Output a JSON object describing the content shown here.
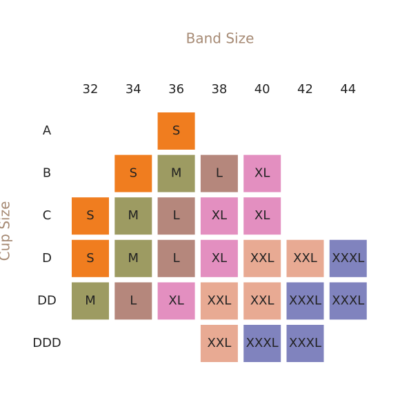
{
  "header": {
    "title": "Band Size",
    "side_title": "Cup Size"
  },
  "columns": [
    32,
    34,
    36,
    38,
    40,
    42,
    44
  ],
  "row_labels": [
    "A",
    "B",
    "C",
    "D",
    "DD",
    "DDD"
  ],
  "rows": [
    [
      null,
      null,
      "S",
      null,
      null,
      null,
      null
    ],
    [
      null,
      "S",
      "M",
      "L",
      "XL",
      null,
      null
    ],
    [
      "S",
      "M",
      "L",
      "XL",
      "XL",
      null,
      null
    ],
    [
      "S",
      "M",
      "L",
      "XL",
      "XXL",
      "XXL",
      "XXXL"
    ],
    [
      "M",
      "L",
      "XL",
      "XXL",
      "XXL",
      "XXXL",
      "XXXL"
    ],
    [
      null,
      null,
      null,
      "XXL",
      "XXXL",
      "XXXL",
      null
    ]
  ],
  "size_colors": {
    "S": "#f07d1f",
    "M": "#9d9b62",
    "L": "#b5877c",
    "XL": "#e38fc0",
    "XXL": "#e8aa93",
    "XXXL": "#8083be"
  }
}
